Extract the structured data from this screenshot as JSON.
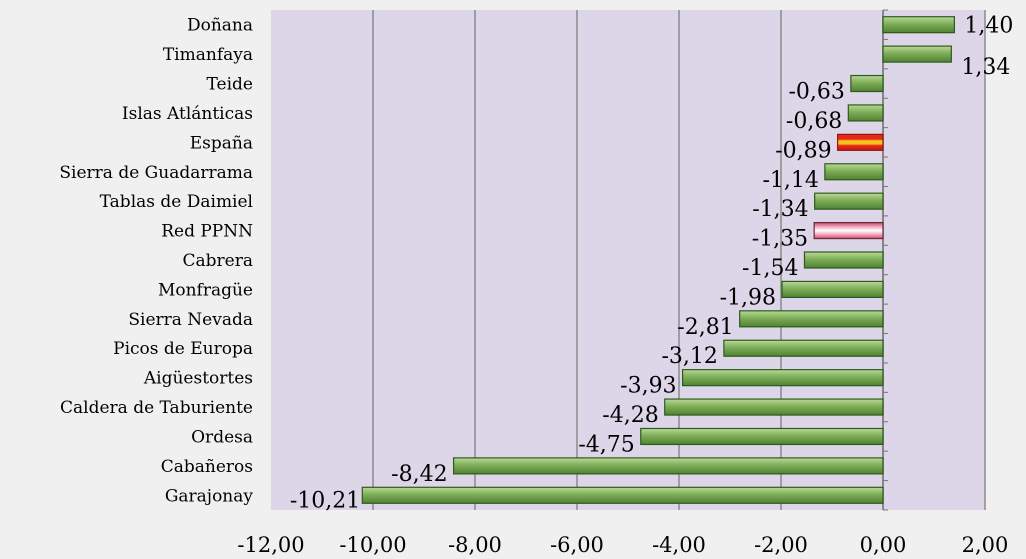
{
  "chart_data": {
    "type": "bar",
    "orientation": "horizontal",
    "categories": [
      "Doñana",
      "Timanfaya",
      "Teide",
      "Islas Atlánticas",
      "España",
      "Sierra de Guadarrama",
      "Tablas de Daimiel",
      "Red PPNN",
      "Cabrera",
      "Monfragüe",
      "Sierra Nevada",
      "Picos de Europa",
      "Aigüestortes",
      "Caldera de Taburiente",
      "Ordesa",
      "Cabañeros",
      "Garajonay"
    ],
    "values": [
      1.4,
      1.34,
      -0.63,
      -0.68,
      -0.89,
      -1.14,
      -1.34,
      -1.35,
      -1.54,
      -1.98,
      -2.81,
      -3.12,
      -3.93,
      -4.28,
      -4.75,
      -8.42,
      -10.21
    ],
    "value_labels": [
      "1,40",
      "1,34",
      "-0,63",
      "-0,68",
      "-0,89",
      "-1,14",
      "-1,34",
      "-1,35",
      "-1,54",
      "-1,98",
      "-2,81",
      "-3,12",
      "-3,93",
      "-4,28",
      "-4,75",
      "-8,42",
      "-10,21"
    ],
    "highlight": {
      "España": "spain",
      "Red PPNN": "network"
    },
    "xlim": [
      -12,
      2
    ],
    "x_ticks": [
      -12,
      -10,
      -8,
      -6,
      -4,
      -2,
      0,
      2
    ],
    "x_tick_labels": [
      "-12,00",
      "-10,00",
      "-8,00",
      "-6,00",
      "-4,00",
      "-2,00",
      "0,00",
      "2,00"
    ],
    "title": "",
    "xlabel": "",
    "ylabel": "",
    "grid": "vertical",
    "colors": {
      "plot_bg": "#ddd6e8",
      "page_bg": "#f0f0f0",
      "bar_green": "#6e9e4a",
      "bar_green_light": "#a8cc86",
      "bar_green_border": "#2f5a1c",
      "spain_red": "#e02a1a",
      "spain_yellow": "#f4c020",
      "network_pink": "#f0a0b4",
      "gridline": "#8a8a8a"
    }
  }
}
